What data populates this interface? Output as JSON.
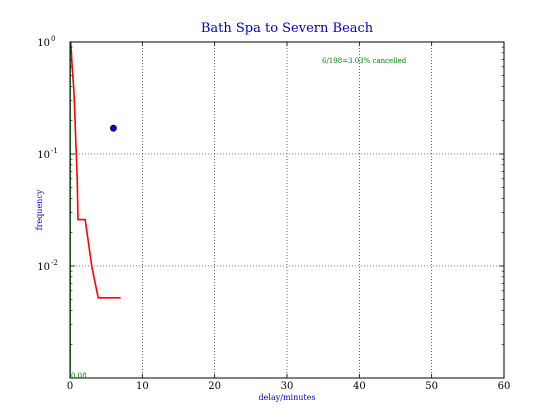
{
  "chart_data": {
    "type": "line",
    "title": "Bath Spa to Severn Beach",
    "xlabel": "delay/minutes",
    "ylabel": "frequency",
    "xlim": [
      0,
      60
    ],
    "ylim": [
      0.001,
      1
    ],
    "yscale": "log",
    "grid": true,
    "x_ticks": [
      "0",
      "10",
      "20",
      "30",
      "40",
      "50",
      "60"
    ],
    "y_ticks": [
      {
        "base": "10",
        "exp": "0",
        "value": 1
      },
      {
        "base": "10",
        "exp": "-1",
        "value": 0.1
      },
      {
        "base": "10",
        "exp": "-2",
        "value": 0.01
      }
    ],
    "annotations": {
      "cancelled": "6/198=3.03% cancelled",
      "bottom_value": "0.08"
    },
    "series": [
      {
        "type": "step",
        "color": "#ff0000",
        "points": [
          [
            0.1,
            1.0
          ],
          [
            0.3,
            0.6
          ],
          [
            0.5,
            0.4
          ],
          [
            0.6,
            0.3
          ],
          [
            0.8,
            0.13
          ],
          [
            1.0,
            0.06
          ],
          [
            1.1,
            0.026
          ],
          [
            2.1,
            0.026
          ],
          [
            3.0,
            0.01
          ],
          [
            3.9,
            0.0052
          ],
          [
            7.0,
            0.0052
          ]
        ]
      },
      {
        "type": "vline",
        "color": "#008000",
        "x": 0.05,
        "y_from": 0.001,
        "y_to": 1.0
      },
      {
        "type": "point",
        "color": "#0000ff",
        "points": [
          [
            6.0,
            0.17
          ]
        ]
      }
    ]
  }
}
